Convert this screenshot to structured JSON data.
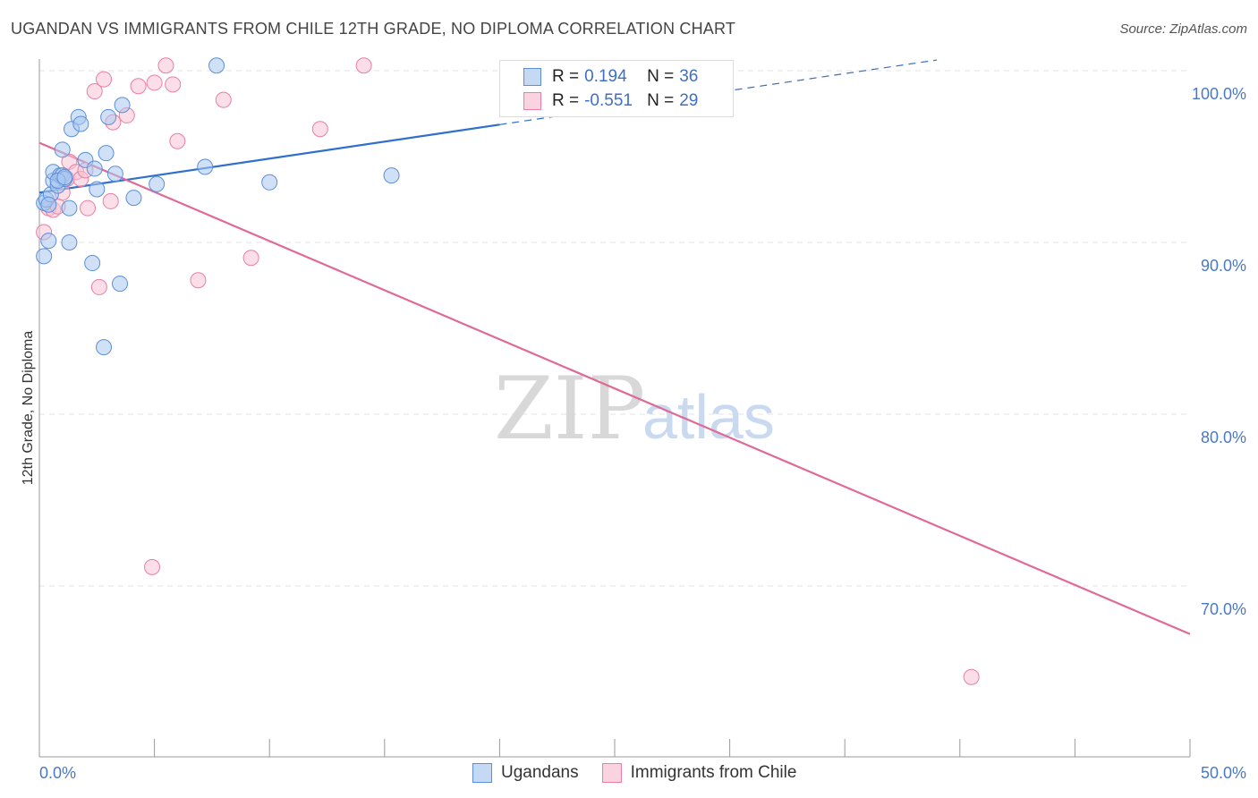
{
  "header": {
    "title": "UGANDAN VS IMMIGRANTS FROM CHILE 12TH GRADE, NO DIPLOMA CORRELATION CHART",
    "source": "Source: ZipAtlas.com"
  },
  "watermark": {
    "zip": "ZIP",
    "atlas": "atlas"
  },
  "legend": {
    "rows": [
      {
        "r_label": "R =",
        "r_value": "0.194",
        "n_label": "N =",
        "n_value": "36"
      },
      {
        "r_label": "R =",
        "r_value": "-0.551",
        "n_label": "N =",
        "n_value": "29"
      }
    ]
  },
  "bottom_legend": {
    "series_a": "Ugandans",
    "series_b": "Immigrants from Chile"
  },
  "colors": {
    "blue_fill": "#aac8f0",
    "blue_stroke": "#5b8fd8",
    "blue_line": "#2f6fce",
    "pink_fill": "#f7c3d3",
    "pink_stroke": "#e97fa3",
    "pink_line": "#e06a97",
    "grid": "#e3e3e3",
    "axis": "#999999"
  },
  "chart_data": {
    "type": "scatter",
    "title": "UGANDAN VS IMMIGRANTS FROM CHILE 12TH GRADE, NO DIPLOMA CORRELATION CHART",
    "xlabel": "",
    "ylabel": "12th Grade, No Diploma",
    "xlim": [
      0,
      50
    ],
    "ylim": [
      60,
      101.5
    ],
    "x_tick_labels": [
      "0.0%",
      "50.0%"
    ],
    "y_ticks": [
      70,
      80,
      90,
      100
    ],
    "y_tick_labels": [
      "70.0%",
      "80.0%",
      "90.0%",
      "100.0%"
    ],
    "series": [
      {
        "name": "Ugandans",
        "r": 0.194,
        "n": 36,
        "points": [
          [
            0.2,
            89.2
          ],
          [
            0.2,
            92.3
          ],
          [
            0.3,
            92.5
          ],
          [
            0.4,
            90.1
          ],
          [
            0.5,
            92.8
          ],
          [
            0.6,
            93.6
          ],
          [
            0.6,
            94.1
          ],
          [
            0.8,
            93.3
          ],
          [
            0.9,
            93.9
          ],
          [
            1.0,
            95.4
          ],
          [
            1.0,
            93.9
          ],
          [
            1.1,
            93.7
          ],
          [
            1.3,
            90.0
          ],
          [
            1.3,
            92.0
          ],
          [
            1.4,
            96.6
          ],
          [
            1.7,
            97.3
          ],
          [
            1.8,
            96.9
          ],
          [
            2.0,
            94.8
          ],
          [
            2.3,
            88.8
          ],
          [
            2.4,
            94.3
          ],
          [
            2.5,
            93.1
          ],
          [
            2.8,
            83.9
          ],
          [
            2.9,
            95.2
          ],
          [
            3.0,
            97.3
          ],
          [
            3.3,
            94.0
          ],
          [
            3.5,
            87.6
          ],
          [
            3.6,
            98.0
          ],
          [
            4.1,
            92.6
          ],
          [
            5.1,
            93.4
          ],
          [
            7.2,
            94.4
          ],
          [
            7.7,
            100.3
          ],
          [
            10.0,
            93.5
          ],
          [
            15.3,
            93.9
          ],
          [
            0.8,
            93.6
          ],
          [
            1.1,
            93.8
          ],
          [
            0.4,
            92.2
          ]
        ],
        "trend": {
          "x": [
            0,
            50
          ],
          "y": [
            92.9,
            102.8
          ],
          "solid_until_x": 20
        }
      },
      {
        "name": "Immigrants from Chile",
        "r": -0.551,
        "n": 29,
        "points": [
          [
            0.2,
            90.6
          ],
          [
            0.4,
            92.0
          ],
          [
            0.6,
            91.9
          ],
          [
            0.8,
            92.1
          ],
          [
            1.0,
            92.9
          ],
          [
            1.2,
            93.7
          ],
          [
            1.3,
            94.7
          ],
          [
            1.6,
            94.1
          ],
          [
            1.8,
            93.7
          ],
          [
            2.0,
            94.2
          ],
          [
            2.1,
            92.0
          ],
          [
            2.4,
            98.8
          ],
          [
            2.6,
            87.4
          ],
          [
            2.8,
            99.5
          ],
          [
            3.1,
            92.4
          ],
          [
            3.2,
            97.0
          ],
          [
            3.8,
            97.4
          ],
          [
            4.3,
            99.1
          ],
          [
            4.9,
            71.1
          ],
          [
            5.0,
            99.3
          ],
          [
            5.5,
            100.3
          ],
          [
            5.8,
            99.2
          ],
          [
            6.0,
            95.9
          ],
          [
            6.9,
            87.8
          ],
          [
            8.0,
            98.3
          ],
          [
            9.2,
            89.1
          ],
          [
            12.2,
            96.6
          ],
          [
            14.1,
            100.3
          ],
          [
            40.5,
            64.7
          ]
        ],
        "trend": {
          "x": [
            0,
            50
          ],
          "y": [
            95.8,
            67.2
          ]
        }
      }
    ]
  }
}
